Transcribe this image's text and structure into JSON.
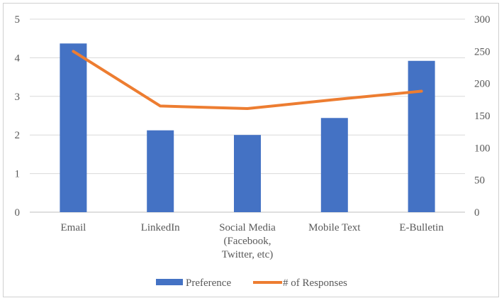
{
  "chart_data": {
    "type": "bar",
    "categories": [
      "Email",
      "LinkedIn",
      "Social Media|(Facebook,|Twitter, etc)",
      "Mobile Text",
      "E-Bulletin"
    ],
    "series": [
      {
        "name": "Preference",
        "type": "bar",
        "axis": "left",
        "color": "#4472C4",
        "values": [
          4.37,
          2.12,
          2.0,
          2.44,
          3.92
        ]
      },
      {
        "name": "# of Responses",
        "type": "line",
        "axis": "right",
        "color": "#ED7D31",
        "values": [
          250,
          165,
          161,
          175,
          188
        ]
      }
    ],
    "y_left": {
      "min": 0,
      "max": 5,
      "ticks": [
        "0",
        "1",
        "2",
        "3",
        "4",
        "5"
      ]
    },
    "y_right": {
      "min": 0,
      "max": 300,
      "ticks": [
        "0",
        "50",
        "100",
        "150",
        "200",
        "250",
        "300"
      ]
    },
    "grid": true,
    "legend": "bottom"
  }
}
